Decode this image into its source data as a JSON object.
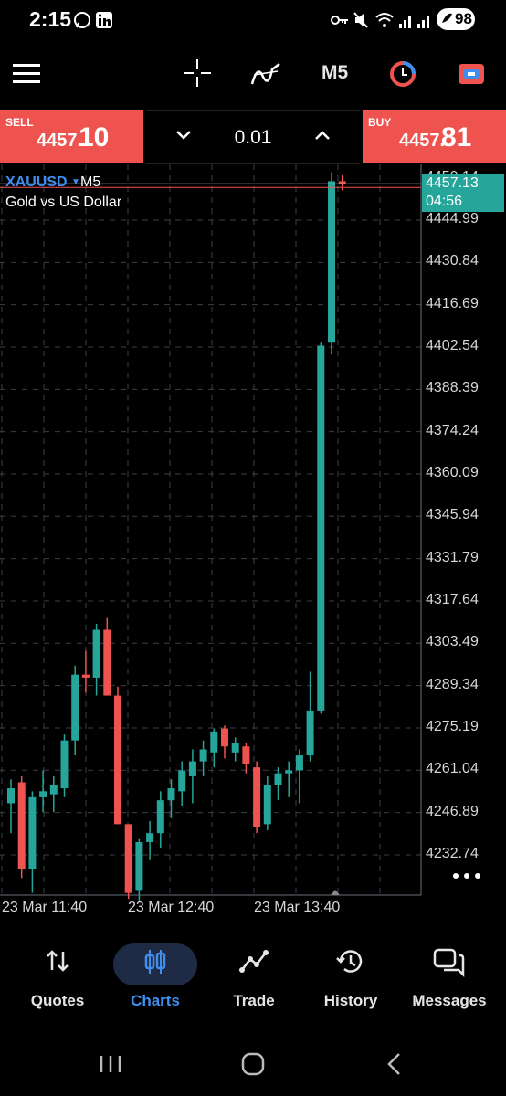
{
  "status_bar": {
    "time": "2:15",
    "battery": "98",
    "left_icons": [
      "whatsapp-icon",
      "linkedin-icon"
    ],
    "right_icons": [
      "key-icon",
      "mute-icon",
      "wifi-icon",
      "signal-icon",
      "signal-icon"
    ]
  },
  "toolbar": {
    "timeframe": "M5",
    "icons": [
      "menu-icon",
      "crosshair-icon",
      "indicators-icon",
      "timeframe-label",
      "history-clock-icon",
      "trade-window-icon"
    ]
  },
  "trade_bar": {
    "sell_label": "SELL",
    "sell_price_main": "4457.",
    "sell_price_big": "10",
    "buy_label": "BUY",
    "buy_price_main": "4457.",
    "buy_price_big": "81",
    "lot_value": "0.01",
    "colors": {
      "sell_bg": "#ef5350",
      "buy_bg": "#ef5350"
    }
  },
  "chart_data": {
    "type": "candlestick",
    "symbol": "XAUUSD",
    "timeframe": "M5",
    "description": "Gold vs US Dollar",
    "y_ticks": [
      "4444.99",
      "4430.84",
      "4416.69",
      "4402.54",
      "4388.39",
      "4374.24",
      "4360.09",
      "4345.94",
      "4331.79",
      "4317.64",
      "4303.49",
      "4289.34",
      "4275.19",
      "4261.04",
      "4246.89",
      "4232.74"
    ],
    "y_top_tick_partial": "4459.14",
    "x_ticks": [
      "23 Mar 11:40",
      "23 Mar 12:40",
      "23 Mar 13:40"
    ],
    "current_price": "4457.13",
    "bar_timer": "04:56",
    "colors": {
      "up": "#26a69a",
      "down": "#ef5350",
      "grid": "#3a3f4a",
      "bid_line": "#b0b0b0"
    },
    "candles": [
      {
        "o": 4250,
        "h": 4258,
        "l": 4240,
        "c": 4255
      },
      {
        "o": 4257,
        "h": 4259,
        "l": 4225,
        "c": 4228
      },
      {
        "o": 4228,
        "h": 4254,
        "l": 4220,
        "c": 4252
      },
      {
        "o": 4252,
        "h": 4261,
        "l": 4247,
        "c": 4254
      },
      {
        "o": 4253,
        "h": 4259,
        "l": 4247,
        "c": 4256
      },
      {
        "o": 4255,
        "h": 4273,
        "l": 4252,
        "c": 4271
      },
      {
        "o": 4271,
        "h": 4296,
        "l": 4266,
        "c": 4293
      },
      {
        "o": 4293,
        "h": 4301,
        "l": 4287,
        "c": 4292
      },
      {
        "o": 4292,
        "h": 4310,
        "l": 4286,
        "c": 4308
      },
      {
        "o": 4308,
        "h": 4312,
        "l": 4286,
        "c": 4286
      },
      {
        "o": 4286,
        "h": 4289,
        "l": 4243,
        "c": 4243
      },
      {
        "o": 4243,
        "h": 4243,
        "l": 4218,
        "c": 4220
      },
      {
        "o": 4221,
        "h": 4238,
        "l": 4217,
        "c": 4237
      },
      {
        "o": 4237,
        "h": 4244,
        "l": 4231,
        "c": 4240
      },
      {
        "o": 4240,
        "h": 4254,
        "l": 4235,
        "c": 4251
      },
      {
        "o": 4251,
        "h": 4258,
        "l": 4245,
        "c": 4255
      },
      {
        "o": 4254,
        "h": 4264,
        "l": 4249,
        "c": 4261
      },
      {
        "o": 4259,
        "h": 4268,
        "l": 4250,
        "c": 4264
      },
      {
        "o": 4264,
        "h": 4271,
        "l": 4259,
        "c": 4268
      },
      {
        "o": 4267,
        "h": 4275,
        "l": 4262,
        "c": 4274
      },
      {
        "o": 4275,
        "h": 4276,
        "l": 4265,
        "c": 4269
      },
      {
        "o": 4267,
        "h": 4272,
        "l": 4264,
        "c": 4270
      },
      {
        "o": 4269,
        "h": 4270,
        "l": 4260,
        "c": 4263
      },
      {
        "o": 4262,
        "h": 4264,
        "l": 4240,
        "c": 4242
      },
      {
        "o": 4243,
        "h": 4259,
        "l": 4241,
        "c": 4256
      },
      {
        "o": 4256,
        "h": 4262,
        "l": 4251,
        "c": 4260
      },
      {
        "o": 4260,
        "h": 4264,
        "l": 4252,
        "c": 4261
      },
      {
        "o": 4261,
        "h": 4268,
        "l": 4250,
        "c": 4266
      },
      {
        "o": 4266,
        "h": 4294,
        "l": 4264,
        "c": 4281
      },
      {
        "o": 4281,
        "h": 4404,
        "l": 4280,
        "c": 4403
      },
      {
        "o": 4404,
        "h": 4461,
        "l": 4400,
        "c": 4458
      },
      {
        "o": 4458,
        "h": 4460,
        "l": 4455,
        "c": 4457
      }
    ]
  },
  "nav": {
    "items": [
      {
        "label": "Quotes",
        "icon": "quotes-icon"
      },
      {
        "label": "Charts",
        "icon": "charts-icon"
      },
      {
        "label": "Trade",
        "icon": "trade-icon"
      },
      {
        "label": "History",
        "icon": "history-icon"
      },
      {
        "label": "Messages",
        "icon": "messages-icon"
      }
    ],
    "active": "Charts",
    "active_color": "#3f8ff0"
  }
}
